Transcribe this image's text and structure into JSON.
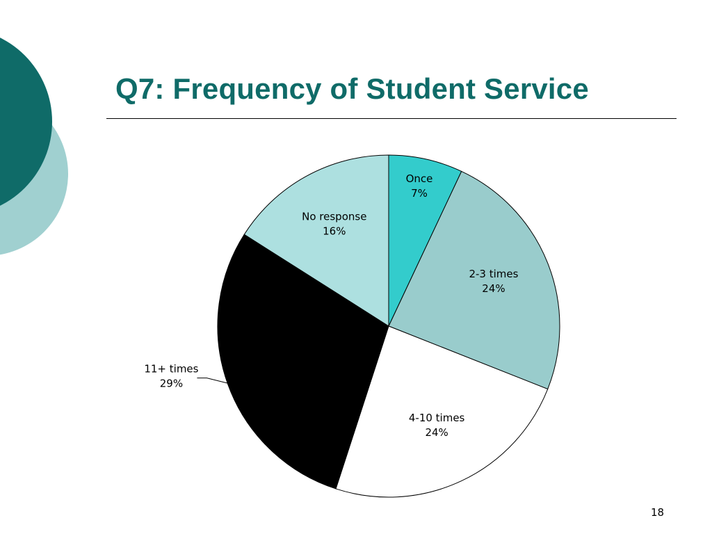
{
  "slide": {
    "title": "Q7: Frequency of Student Service",
    "page_number": "18"
  },
  "colors": {
    "title": "#0f6b68",
    "decor_dark": "#0f6b68",
    "decor_light": "#a0d0d0"
  },
  "chart_data": {
    "type": "pie",
    "categories": [
      "Once",
      "2-3 times",
      "4-10 times",
      "11+ times",
      "No response"
    ],
    "values": [
      7,
      24,
      24,
      29,
      16
    ],
    "labels": [
      "7%",
      "24%",
      "24%",
      "29%",
      "16%"
    ],
    "colors": [
      "#33cccc",
      "#99cccc",
      "#ffffff",
      "#000000",
      "#ade0e0"
    ],
    "start": "12 o'clock, clockwise",
    "legend": "none (labels on slices)"
  }
}
